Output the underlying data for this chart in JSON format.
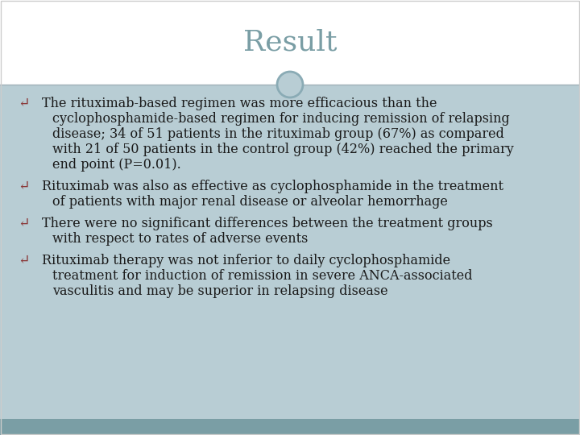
{
  "title": "Result",
  "title_color": "#7a9ea5",
  "title_fontsize": 26,
  "bg_top": "#ffffff",
  "content_bg": "#b8cdd4",
  "bottom_bar_color": "#7a9ea5",
  "divider_color": "#a0b0b8",
  "circle_edge_color": "#8aabb5",
  "bullet_color": "#8B3a3a",
  "text_color": "#1a1a1a",
  "text_fontsize": 11.5,
  "bullet_points": [
    "The rituximab-based regimen was more efficacious than the cyclophosphamide-based regimen for inducing remission of relapsing disease; 34 of 51 patients in the rituximab group (67%) as compared with 21 of 50 patients in the control group (42%) reached the primary end point (P=0.01).",
    "Rituximab was also as effective as cyclophosphamide in the treatment of patients with major renal disease or alveolar hemorrhage",
    "There were no significant differences between the treatment groups with respect to rates of adverse events",
    "Rituximab therapy was not inferior to daily cyclophosphamide treatment for induction of remission in severe ANCA-associated vasculitis and may be superior in relapsing disease"
  ]
}
